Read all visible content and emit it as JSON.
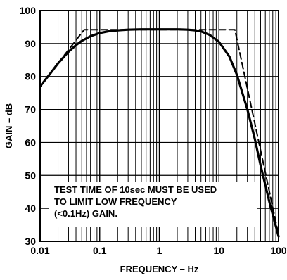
{
  "chart_data": {
    "type": "line",
    "title": "",
    "xlabel": "FREQUENCY – Hz",
    "ylabel": "GAIN – dB",
    "x_scale": "log",
    "xlim": [
      0.01,
      100
    ],
    "ylim": [
      30,
      100
    ],
    "grid": true,
    "x_ticks": [
      {
        "value": 0.01,
        "label": "0.01"
      },
      {
        "value": 0.1,
        "label": "0.1"
      },
      {
        "value": 1,
        "label": "1"
      },
      {
        "value": 10,
        "label": "10"
      },
      {
        "value": 100,
        "label": "100"
      }
    ],
    "y_ticks": [
      {
        "value": 30,
        "label": "30"
      },
      {
        "value": 40,
        "label": "40"
      },
      {
        "value": 50,
        "label": "50"
      },
      {
        "value": 60,
        "label": "60"
      },
      {
        "value": 70,
        "label": "70"
      },
      {
        "value": 80,
        "label": "80"
      },
      {
        "value": 90,
        "label": "90"
      },
      {
        "value": 100,
        "label": "100"
      }
    ],
    "series": [
      {
        "style": "solid",
        "x": [
          0.01,
          0.015,
          0.02,
          0.03,
          0.04,
          0.05,
          0.07,
          0.1,
          0.15,
          0.2,
          0.3,
          0.5,
          1,
          2,
          3,
          4,
          5,
          7,
          10,
          15,
          20,
          30,
          40,
          50,
          70,
          100
        ],
        "y": [
          77,
          81,
          84,
          87.5,
          89.5,
          90.8,
          92.2,
          93.2,
          93.8,
          94,
          94.2,
          94.3,
          94.3,
          94.3,
          94.2,
          94,
          93.7,
          92.6,
          90.5,
          86,
          80.5,
          70,
          61,
          53,
          42,
          31.5
        ]
      },
      {
        "style": "dashed",
        "x": [
          0.01,
          0.055,
          18.5,
          100
        ],
        "y": [
          77,
          94.2,
          94.2,
          32
        ]
      }
    ],
    "annotations": [
      "TEST TIME OF 10sec MUST BE USED",
      "TO LIMIT LOW FREQUENCY",
      "(<0.1Hz) GAIN."
    ]
  }
}
